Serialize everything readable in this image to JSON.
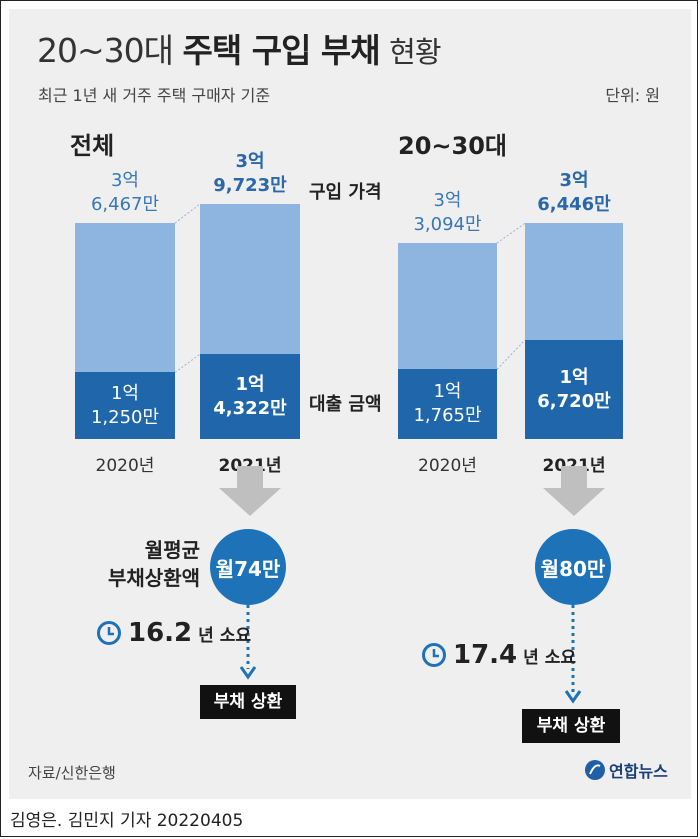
{
  "title_light": "20~30대",
  "title_bold": "주택 구입 부채",
  "title_tail": "현황",
  "subtitle": "최근 1년 새 거주 주택 구매자 기준",
  "unit": "단위: 원",
  "labels": {
    "purchase_price": "구입 가격",
    "loan_amount": "대출 금액"
  },
  "monthly_label": [
    "월평균",
    "부채상환액"
  ],
  "groups": [
    {
      "name": "전체",
      "bars": [
        {
          "year": "2020년",
          "price": 36467,
          "loan": 11250,
          "price_label": [
            "3억",
            "6,467만"
          ],
          "loan_label": [
            "1억",
            "1,250만"
          ]
        },
        {
          "year": "2021년",
          "price": 39723,
          "loan": 14322,
          "price_label": [
            "3억",
            "9,723만"
          ],
          "loan_label": [
            "1억",
            "4,322만"
          ]
        }
      ],
      "monthly": "월74만",
      "duration_num": "16.2",
      "duration_unit": "년 소요",
      "repay": "부채 상환"
    },
    {
      "name": "20~30대",
      "bars": [
        {
          "year": "2020년",
          "price": 33094,
          "loan": 11765,
          "price_label": [
            "3억",
            "3,094만"
          ],
          "loan_label": [
            "1억",
            "1,765만"
          ]
        },
        {
          "year": "2021년",
          "price": 36446,
          "loan": 16720,
          "price_label": [
            "3억",
            "6,446만"
          ],
          "loan_label": [
            "1억",
            "6,720만"
          ]
        }
      ],
      "monthly": "월80만",
      "duration_num": "17.4",
      "duration_unit": "년 소요",
      "repay": "부채 상환"
    }
  ],
  "source": "자료/신한은행",
  "logo": "연합뉴스",
  "byline": "김영은. 김민지 기자  20220405",
  "colors": {
    "price": "#8db5e0",
    "loan": "#1f67aa",
    "circle": "#1d72b8",
    "arrow": "#bfbfbf"
  },
  "chart_data": [
    {
      "type": "bar",
      "title": "전체",
      "categories": [
        "2020년",
        "2021년"
      ],
      "series": [
        {
          "name": "구입 가격",
          "values": [
            36467,
            39723
          ]
        },
        {
          "name": "대출 금액",
          "values": [
            11250,
            14322
          ]
        }
      ],
      "unit": "만원"
    },
    {
      "type": "bar",
      "title": "20~30대",
      "categories": [
        "2020년",
        "2021년"
      ],
      "series": [
        {
          "name": "구입 가격",
          "values": [
            33094,
            36446
          ]
        },
        {
          "name": "대출 금액",
          "values": [
            11765,
            16720
          ]
        }
      ],
      "unit": "만원"
    }
  ]
}
